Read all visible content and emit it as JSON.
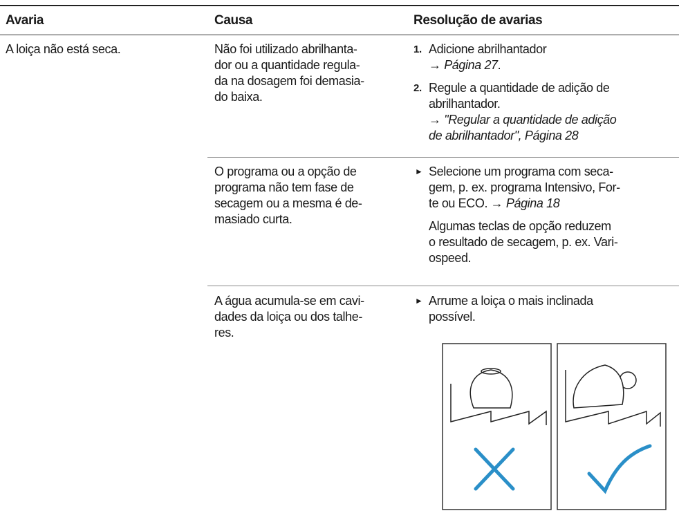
{
  "table": {
    "headers": [
      "Avaria",
      "Causa",
      "Resolução de avarias"
    ],
    "fault": "A loiça não está seca.",
    "rows": [
      {
        "cause": [
          "Não foi utilizado abrilhanta-",
          "dor ou a quantidade regula-",
          "da na dosagem foi demasia-",
          "do baixa."
        ],
        "solution": [
          {
            "marker": "1.",
            "lines": [
              [
                "Adicione abrilhantador"
              ],
              [
                {
                  "text": "→ Página 27",
                  "italic": true
                },
                "."
              ]
            ]
          },
          {
            "marker": "2.",
            "lines": [
              [
                "Regule a quantidade de adição de"
              ],
              [
                "abrilhantador."
              ],
              [
                {
                  "text": "→ \"Regular a quantidade de adição",
                  "italic": true
                }
              ],
              [
                {
                  "text": "de abrilhantador\", Página 28",
                  "italic": true
                }
              ]
            ]
          }
        ]
      },
      {
        "cause": [
          "O programa ou a opção de",
          "programa não tem fase de",
          "secagem ou a mesma é de-",
          "masiado curta."
        ],
        "solution": [
          {
            "bullet": true,
            "lines": [
              [
                "Selecione um programa com seca-"
              ],
              [
                "gem, p. ex. programa Intensivo, For-"
              ],
              [
                "te ou ECO. ",
                {
                  "text": "→ Página 18",
                  "italic": true
                }
              ]
            ]
          },
          {
            "lines": [
              [
                "Algumas teclas de opção reduzem"
              ],
              [
                "o resultado de secagem, p. ex. Vari-"
              ],
              [
                "ospeed."
              ]
            ]
          }
        ]
      },
      {
        "cause": [
          "A água acumula-se em cavi-",
          "dades da loiça ou dos talhe-",
          "res."
        ],
        "solution": [
          {
            "bullet": true,
            "lines": [
              [
                "Arrume a loiça o mais inclinada"
              ],
              [
                "possível."
              ]
            ]
          }
        ]
      }
    ]
  }
}
